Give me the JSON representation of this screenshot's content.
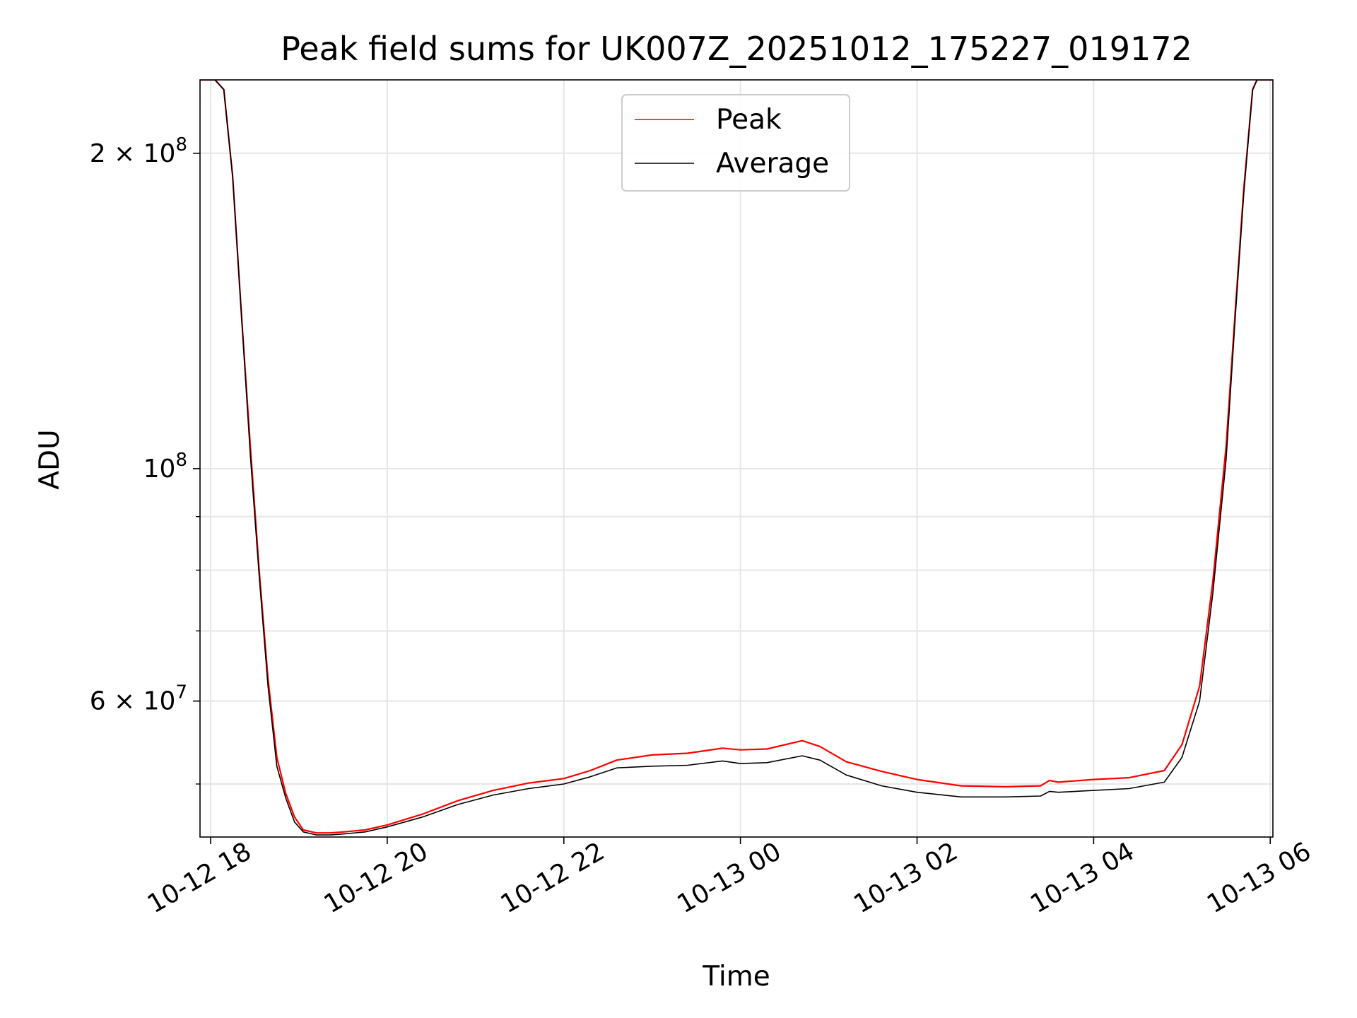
{
  "chart_data": {
    "type": "line",
    "title": "Peak field sums for UK007Z_20251012_175227_019172",
    "xlabel": "Time",
    "ylabel": "ADU",
    "yscale": "log",
    "ylim": [
      44500000,
      235000000
    ],
    "xlim_hours": [
      17.88,
      30.03
    ],
    "grid": true,
    "legend_position": "upper center",
    "x_ticks": [
      {
        "hour": 18,
        "label": "10-12 18"
      },
      {
        "hour": 20,
        "label": "10-12 20"
      },
      {
        "hour": 22,
        "label": "10-12 22"
      },
      {
        "hour": 24,
        "label": "10-13 00"
      },
      {
        "hour": 26,
        "label": "10-13 02"
      },
      {
        "hour": 28,
        "label": "10-13 04"
      },
      {
        "hour": 30,
        "label": "10-13 06"
      }
    ],
    "y_major_ticks": [
      {
        "value": 200000000,
        "base": "2 × 10",
        "exp": "8"
      },
      {
        "value": 100000000,
        "base": "10",
        "exp": "8"
      },
      {
        "value": 60000000,
        "base": "6 × 10",
        "exp": "7"
      }
    ],
    "y_minor_ticks": [
      50000000,
      70000000,
      80000000,
      90000000
    ],
    "series": [
      {
        "name": "Peak",
        "color": "#ff0000",
        "x_hours": [
          17.88,
          18.05,
          18.15,
          18.25,
          18.35,
          18.45,
          18.55,
          18.65,
          18.75,
          18.85,
          18.95,
          19.05,
          19.2,
          19.35,
          19.5,
          19.75,
          20.0,
          20.4,
          20.8,
          21.2,
          21.6,
          22.0,
          22.3,
          22.6,
          23.0,
          23.4,
          23.8,
          24.0,
          24.3,
          24.7,
          24.9,
          25.2,
          25.6,
          26.0,
          26.5,
          27.0,
          27.4,
          27.5,
          27.6,
          28.0,
          28.4,
          28.8,
          29.0,
          29.2,
          29.35,
          29.5,
          29.6,
          29.7,
          29.8,
          29.85,
          30.03
        ],
        "values": [
          235000000,
          235000000,
          230000000,
          190000000,
          140000000,
          105000000,
          80000000,
          63000000,
          53000000,
          49000000,
          46500000,
          45200000,
          44900000,
          44900000,
          45000000,
          45200000,
          45700000,
          46800000,
          48200000,
          49300000,
          50100000,
          50600000,
          51500000,
          52700000,
          53300000,
          53500000,
          54100000,
          53900000,
          54000000,
          55000000,
          54300000,
          52500000,
          51400000,
          50500000,
          49800000,
          49700000,
          49800000,
          50400000,
          50200000,
          50500000,
          50700000,
          51500000,
          54500000,
          62000000,
          78000000,
          105000000,
          140000000,
          185000000,
          230000000,
          235000000,
          235000000
        ]
      },
      {
        "name": "Average",
        "color": "#000000",
        "x_hours": [
          17.88,
          18.05,
          18.15,
          18.25,
          18.35,
          18.45,
          18.55,
          18.65,
          18.75,
          18.85,
          18.95,
          19.05,
          19.2,
          19.35,
          19.5,
          19.75,
          20.0,
          20.4,
          20.8,
          21.2,
          21.6,
          22.0,
          22.3,
          22.6,
          23.0,
          23.4,
          23.8,
          24.0,
          24.3,
          24.7,
          24.9,
          25.2,
          25.6,
          26.0,
          26.5,
          27.0,
          27.4,
          27.5,
          27.6,
          28.0,
          28.4,
          28.8,
          29.0,
          29.2,
          29.35,
          29.5,
          29.6,
          29.7,
          29.8,
          29.85,
          30.03
        ],
        "values": [
          235000000,
          235000000,
          230000000,
          190000000,
          140000000,
          103000000,
          79000000,
          62000000,
          52000000,
          48500000,
          46000000,
          45000000,
          44700000,
          44700000,
          44800000,
          45000000,
          45500000,
          46500000,
          47800000,
          48800000,
          49500000,
          50000000,
          50800000,
          51800000,
          52000000,
          52100000,
          52600000,
          52300000,
          52400000,
          53200000,
          52700000,
          51000000,
          49800000,
          49100000,
          48600000,
          48600000,
          48700000,
          49200000,
          49100000,
          49300000,
          49500000,
          50200000,
          53000000,
          60000000,
          76000000,
          102000000,
          138000000,
          183000000,
          230000000,
          235000000,
          235000000
        ]
      }
    ]
  }
}
